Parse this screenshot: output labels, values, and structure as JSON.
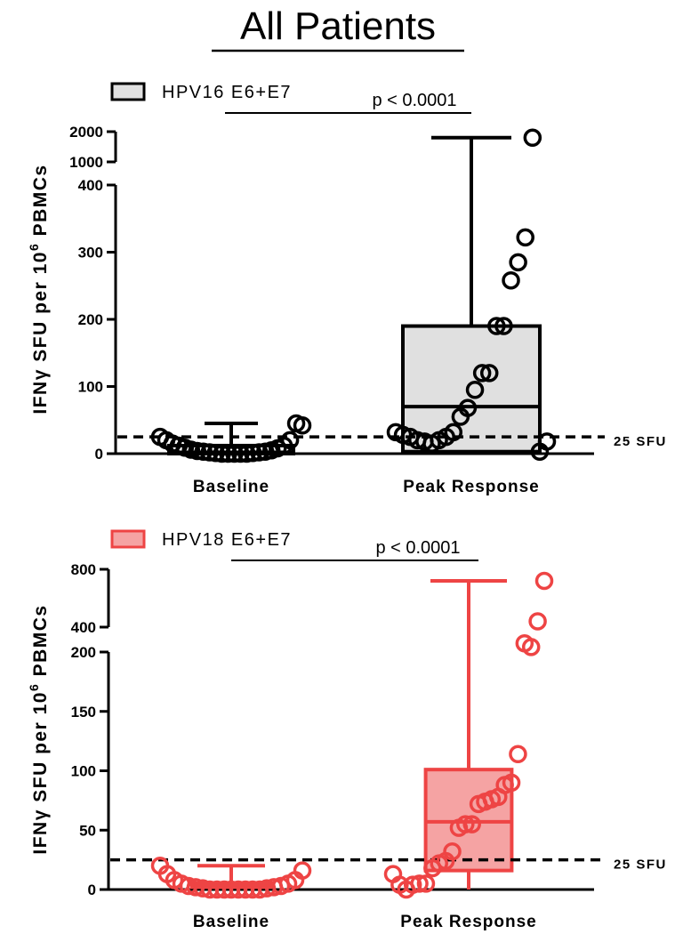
{
  "figure": {
    "title": "All Patients"
  },
  "chart_data": [
    {
      "type": "box",
      "legend": "HPV16 E6+E7",
      "ylabel_main": "IFNγ SFU per 10",
      "ylabel_exp": "6",
      "ylabel_tail": " PBMCs",
      "y_ticks_lower": [
        0,
        100,
        200,
        300,
        400
      ],
      "y_ticks_upper": [
        1000,
        2000
      ],
      "categories": [
        "Baseline",
        "Peak Response"
      ],
      "reference_line": {
        "value": 25,
        "label": "25 SFU"
      },
      "significance": {
        "label": "p < 0.0001"
      },
      "color": "#000000",
      "box_fill": "#e0e0e0",
      "boxes": [
        {
          "category": "Baseline",
          "min": 0,
          "q1": 0,
          "median": 2,
          "q3": 12,
          "max": 45
        },
        {
          "category": "Peak Response",
          "min": 3,
          "q1": 3,
          "median": 70,
          "q3": 190,
          "max": 1800
        }
      ],
      "points": [
        {
          "category": "Baseline",
          "values": [
            25,
            20,
            15,
            12,
            9,
            6,
            4,
            3,
            2,
            1,
            0,
            0,
            0,
            0,
            0,
            1,
            2,
            3,
            5,
            8,
            12,
            20,
            45,
            42
          ]
        },
        {
          "category": "Peak Response",
          "values": [
            32,
            28,
            25,
            20,
            18,
            15,
            20,
            25,
            32,
            55,
            68,
            95,
            120,
            120,
            190,
            190,
            258,
            285,
            322,
            1800,
            3,
            18
          ]
        }
      ]
    },
    {
      "type": "box",
      "legend": "HPV18 E6+E7",
      "ylabel_main": "IFNγ SFU per 10",
      "ylabel_exp": "6",
      "ylabel_tail": " PBMCs",
      "y_ticks_lower": [
        0,
        50,
        100,
        150,
        200
      ],
      "y_ticks_upper": [
        400,
        800
      ],
      "categories": [
        "Baseline",
        "Peak Response"
      ],
      "reference_line": {
        "value": 25,
        "label": "25 SFU"
      },
      "significance": {
        "label": "p < 0.0001"
      },
      "color": "#ee4444",
      "box_fill": "#f5a3a3",
      "boxes": [
        {
          "category": "Baseline",
          "min": 0,
          "q1": 2,
          "median": 3,
          "q3": 5,
          "max": 20
        },
        {
          "category": "Peak Response",
          "min": 0,
          "q1": 16,
          "median": 57,
          "q3": 101,
          "max": 720
        }
      ],
      "points": [
        {
          "category": "Baseline",
          "values": [
            20,
            13,
            8,
            5,
            3,
            2,
            1,
            0,
            0,
            0,
            0,
            0,
            0,
            0,
            0,
            1,
            2,
            3,
            5,
            8,
            16
          ]
        },
        {
          "category": "Peak Response",
          "values": [
            13,
            4,
            0,
            4,
            5,
            5,
            18,
            22,
            24,
            32,
            52,
            55,
            55,
            72,
            74,
            76,
            78,
            88,
            90,
            114,
            270,
            240,
            440,
            720
          ]
        }
      ]
    }
  ]
}
